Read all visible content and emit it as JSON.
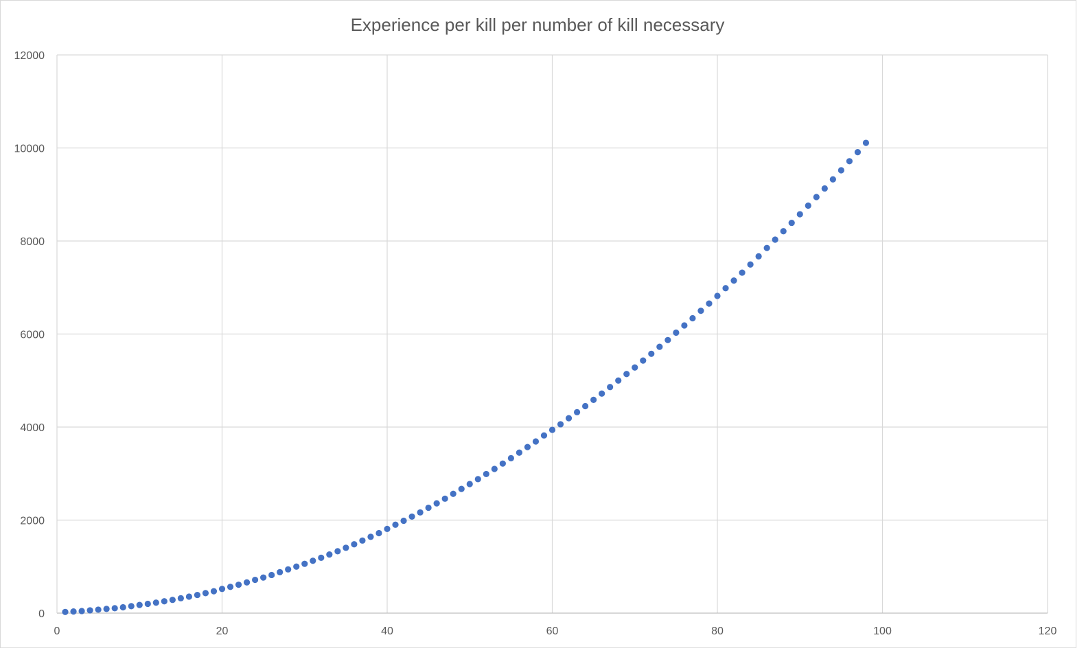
{
  "chart_data": {
    "type": "scatter",
    "title": "Experience per kill per number of kill necessary",
    "xlabel": "",
    "ylabel": "",
    "xlim": [
      0,
      120
    ],
    "ylim": [
      0,
      12000
    ],
    "x_ticks": [
      0,
      20,
      40,
      60,
      80,
      100,
      120
    ],
    "y_ticks": [
      0,
      2000,
      4000,
      6000,
      8000,
      10000,
      12000
    ],
    "grid": true,
    "legend": "none",
    "marker_color": "#4472c4",
    "series": [
      {
        "x": [
          1,
          2,
          3,
          4,
          5,
          6,
          7,
          8,
          9,
          10,
          11,
          12,
          13,
          14,
          15,
          16,
          17,
          18,
          19,
          20,
          21,
          22,
          23,
          24,
          25,
          26,
          27,
          28,
          29,
          30,
          31,
          32,
          33,
          34,
          35,
          36,
          37,
          38,
          39,
          40,
          41,
          42,
          43,
          44,
          45,
          46,
          47,
          48,
          49,
          50,
          51,
          52,
          53,
          54,
          55,
          56,
          57,
          58,
          59,
          60,
          61,
          62,
          63,
          64,
          65,
          66,
          67,
          68,
          69,
          70,
          71,
          72,
          73,
          74,
          75,
          76,
          77,
          78,
          79,
          80,
          81,
          82,
          83,
          84,
          85,
          86,
          87,
          88,
          89,
          90,
          91,
          92,
          93,
          94,
          95,
          96,
          97,
          98
        ],
        "y": [
          25,
          35,
          45,
          60,
          75,
          90,
          105,
          125,
          150,
          175,
          200,
          225,
          255,
          285,
          320,
          355,
          390,
          430,
          470,
          520,
          565,
          610,
          660,
          715,
          765,
          820,
          880,
          940,
          1000,
          1060,
          1125,
          1190,
          1260,
          1330,
          1405,
          1480,
          1560,
          1640,
          1720,
          1810,
          1900,
          1985,
          2075,
          2165,
          2265,
          2360,
          2460,
          2565,
          2670,
          2775,
          2880,
          2990,
          3100,
          3215,
          3330,
          3450,
          3570,
          3690,
          3820,
          3940,
          4060,
          4190,
          4320,
          4450,
          4585,
          4720,
          4860,
          5000,
          5140,
          5280,
          5430,
          5575,
          5725,
          5870,
          6030,
          6185,
          6340,
          6500,
          6655,
          6820,
          6985,
          7150,
          7320,
          7495,
          7670,
          7850,
          8030,
          8210,
          8390,
          8575,
          8760,
          8945,
          9130,
          9325,
          9520,
          9715,
          9910,
          10110
        ]
      }
    ]
  }
}
